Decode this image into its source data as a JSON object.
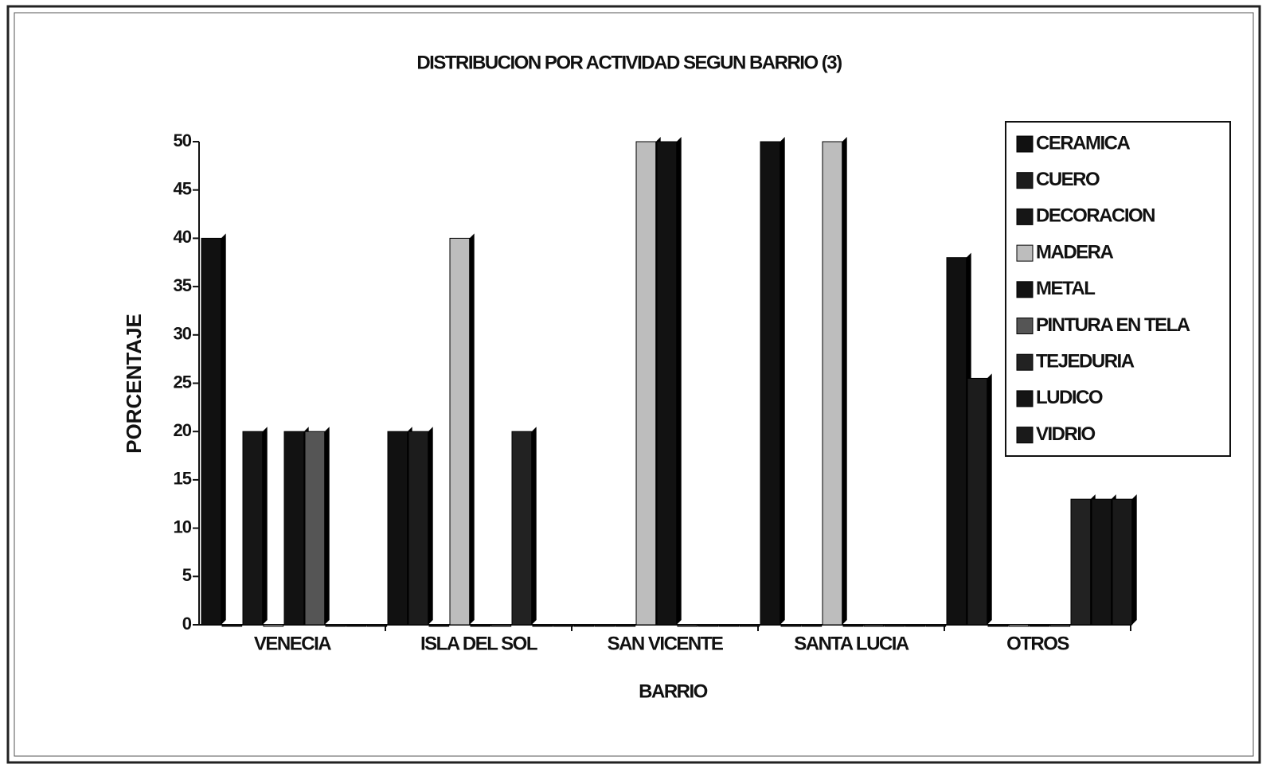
{
  "chart_data": {
    "type": "bar",
    "title": "DISTRIBUCION POR ACTIVIDAD SEGUN BARRIO (3)",
    "x_label": "BARRIO",
    "y_label": "PORCENTAJE",
    "categories": [
      "VENECIA",
      "ISLA DEL SOL",
      "SAN VICENTE",
      "SANTA LUCIA",
      "OTROS"
    ],
    "series": [
      {
        "name": "CERAMICA",
        "color": "#111111",
        "values": [
          40,
          20,
          0,
          50,
          38
        ]
      },
      {
        "name": "CUERO",
        "color": "#1c1c1c",
        "values": [
          0,
          20,
          0,
          0,
          25.5
        ]
      },
      {
        "name": "DECORACION",
        "color": "#161616",
        "values": [
          20,
          0,
          0,
          0,
          0
        ]
      },
      {
        "name": "MADERA",
        "color": "#bdbdbd",
        "values": [
          0,
          40,
          50,
          50,
          0
        ]
      },
      {
        "name": "METAL",
        "color": "#121212",
        "values": [
          20,
          0,
          50,
          0,
          0
        ]
      },
      {
        "name": "PINTURA EN TELA",
        "color": "#555555",
        "values": [
          20,
          0,
          0,
          0,
          0
        ]
      },
      {
        "name": "TEJEDURIA",
        "color": "#222222",
        "values": [
          0,
          20,
          0,
          0,
          13
        ]
      },
      {
        "name": "LUDICO",
        "color": "#141414",
        "values": [
          0,
          0,
          0,
          0,
          13
        ]
      },
      {
        "name": "VIDRIO",
        "color": "#1a1a1a",
        "values": [
          0,
          0,
          0,
          0,
          13
        ]
      }
    ],
    "ylim": [
      0,
      50
    ],
    "yticks": [
      0,
      5,
      10,
      15,
      20,
      25,
      30,
      35,
      40,
      45,
      50
    ],
    "legend": "top-right"
  }
}
